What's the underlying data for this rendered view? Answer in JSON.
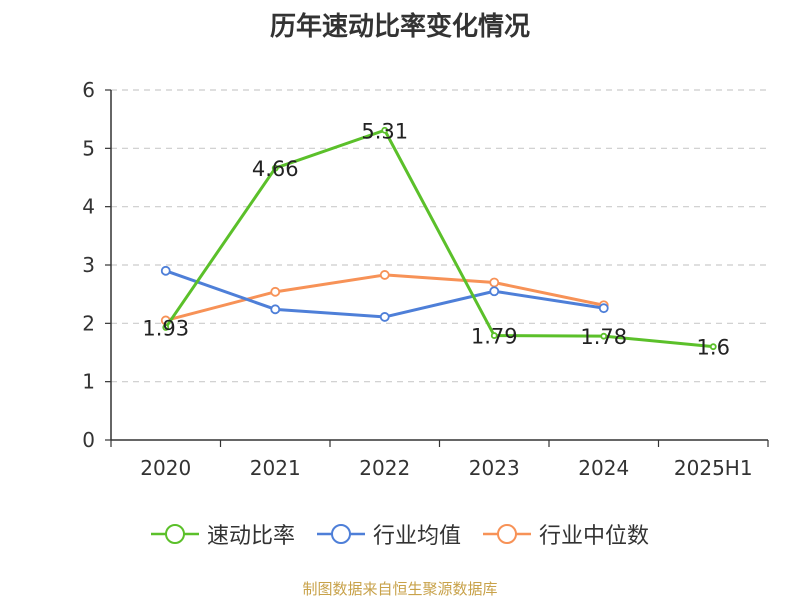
{
  "chart_data": {
    "type": "line",
    "title": "历年速动比率变化情况",
    "categories": [
      "2020",
      "2021",
      "2022",
      "2023",
      "2024",
      "2025H1"
    ],
    "yticks": [
      "0",
      "1",
      "2",
      "3",
      "4",
      "5",
      "6"
    ],
    "ylim": [
      0,
      6
    ],
    "grid": true,
    "legend_position": "bottom",
    "series": [
      {
        "name": "速动比率",
        "color": "#5bc02a",
        "values": [
          1.93,
          4.66,
          5.31,
          1.79,
          1.78,
          1.6
        ],
        "labels": [
          "1.93",
          "4.66",
          "5.31",
          "1.79",
          "1.78",
          "1.6"
        ]
      },
      {
        "name": "行业均值",
        "color": "#4e7fd8",
        "values": [
          2.9,
          2.24,
          2.11,
          2.55,
          2.26,
          null
        ]
      },
      {
        "name": "行业中位数",
        "color": "#f79257",
        "values": [
          2.05,
          2.54,
          2.83,
          2.7,
          2.31,
          null
        ]
      }
    ]
  },
  "source": "制图数据来自恒生聚源数据库"
}
